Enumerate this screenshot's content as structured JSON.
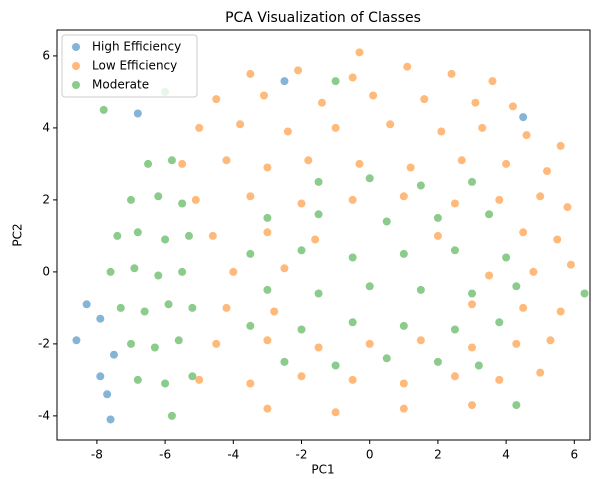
{
  "chart_data": {
    "type": "scatter",
    "title": "PCA Visualization of Classes",
    "x_label": "PC1",
    "y_label": "PC2",
    "xlim": [
      -9.17,
      6.46
    ],
    "ylim": [
      -4.67,
      6.72
    ],
    "xticks": [
      -8,
      -6,
      -4,
      -2,
      0,
      2,
      4,
      6
    ],
    "yticks": [
      -4,
      -2,
      0,
      2,
      4,
      6
    ],
    "legend": "upper left",
    "series": [
      {
        "name": "High Efficiency",
        "color": "#1f77b4",
        "x": [
          -8.6,
          -8.3,
          -7.9,
          -7.6,
          -7.7,
          -6.8,
          -2.5,
          4.5,
          -7.9,
          -7.5
        ],
        "y": [
          -1.9,
          -0.9,
          -2.9,
          -4.1,
          -3.4,
          4.4,
          5.3,
          4.3,
          -1.3,
          -2.3
        ]
      },
      {
        "name": "Low Efficiency",
        "color": "#ff7f0e",
        "x": [
          -3.5,
          -2.1,
          -0.5,
          1.1,
          2.4,
          3.6,
          -0.3,
          -4.5,
          -3.1,
          -1.4,
          0.1,
          1.6,
          3.1,
          4.2,
          -5.0,
          -3.8,
          -2.4,
          -1.0,
          0.6,
          2.1,
          3.3,
          4.6,
          -5.5,
          -4.2,
          -3.0,
          -1.8,
          -0.3,
          1.2,
          2.7,
          4.0,
          5.2,
          -5.1,
          -3.5,
          -2.0,
          -0.5,
          1.0,
          2.5,
          3.8,
          5.0,
          5.8,
          -4.6,
          -3.0,
          -1.6,
          2.0,
          4.5,
          5.5,
          -4.0,
          -2.5,
          3.5,
          4.8,
          5.9,
          -4.2,
          -2.8,
          3.0,
          4.5,
          5.6,
          -4.5,
          -3.0,
          -1.5,
          0.0,
          1.5,
          3.0,
          4.3,
          5.3,
          -5.0,
          -3.5,
          -2.0,
          -0.5,
          1.0,
          2.5,
          3.8,
          5.0,
          -3.0,
          -1.0,
          1.0,
          3.0,
          5.6
        ],
        "y": [
          5.5,
          5.6,
          5.4,
          5.7,
          5.5,
          5.3,
          6.1,
          4.8,
          4.9,
          4.7,
          4.9,
          4.8,
          4.7,
          4.6,
          4.0,
          4.1,
          3.9,
          4.0,
          4.1,
          3.9,
          4.0,
          3.8,
          3.0,
          3.1,
          2.9,
          3.1,
          3.0,
          2.9,
          3.1,
          3.0,
          2.8,
          2.0,
          2.1,
          1.9,
          2.0,
          2.1,
          1.9,
          2.0,
          2.1,
          1.8,
          1.0,
          1.1,
          0.9,
          1.0,
          1.1,
          0.9,
          0.0,
          0.1,
          -0.1,
          0.0,
          0.2,
          -1.0,
          -1.1,
          -0.9,
          -1.0,
          -1.1,
          -2.0,
          -1.9,
          -2.1,
          -2.0,
          -1.9,
          -2.1,
          -2.0,
          -1.9,
          -3.0,
          -3.1,
          -2.9,
          -3.0,
          -3.1,
          -2.9,
          -3.0,
          -2.8,
          -3.8,
          -3.9,
          -3.8,
          -3.7,
          3.5
        ]
      },
      {
        "name": "Moderate",
        "color": "#2ca02c",
        "x": [
          -6.5,
          -5.8,
          -7.0,
          -6.2,
          -5.5,
          -7.4,
          -6.8,
          -6.0,
          -5.3,
          -7.6,
          -6.9,
          -6.2,
          -5.5,
          -7.3,
          -6.6,
          -5.9,
          -5.2,
          -7.0,
          -6.3,
          -5.6,
          -6.8,
          -6.0,
          -5.2,
          -1.5,
          0.0,
          1.5,
          3.0,
          -3.0,
          -1.5,
          0.5,
          2.0,
          3.5,
          -3.5,
          -2.0,
          -0.5,
          1.0,
          2.5,
          4.0,
          -3.0,
          -1.5,
          0.0,
          1.5,
          3.0,
          4.3,
          -3.5,
          -2.0,
          -0.5,
          1.0,
          2.5,
          3.8,
          -2.5,
          -1.0,
          0.5,
          2.0,
          3.2,
          -7.8,
          -6.0,
          -1.0,
          6.3,
          4.3,
          -5.8
        ],
        "y": [
          3.0,
          3.1,
          2.0,
          2.1,
          1.9,
          1.0,
          1.1,
          0.9,
          1.0,
          0.0,
          0.1,
          -0.1,
          0.0,
          -1.0,
          -1.1,
          -0.9,
          -1.0,
          -2.0,
          -2.1,
          -1.9,
          -3.0,
          -3.1,
          -2.9,
          2.5,
          2.6,
          2.4,
          2.5,
          1.5,
          1.6,
          1.4,
          1.5,
          1.6,
          0.5,
          0.6,
          0.4,
          0.5,
          0.6,
          0.4,
          -0.5,
          -0.6,
          -0.4,
          -0.5,
          -0.6,
          -0.4,
          -1.5,
          -1.6,
          -1.4,
          -1.5,
          -1.6,
          -1.4,
          -2.5,
          -2.6,
          -2.4,
          -2.5,
          -2.6,
          4.5,
          5.0,
          5.3,
          -0.6,
          -3.7,
          -4.0
        ]
      }
    ]
  }
}
